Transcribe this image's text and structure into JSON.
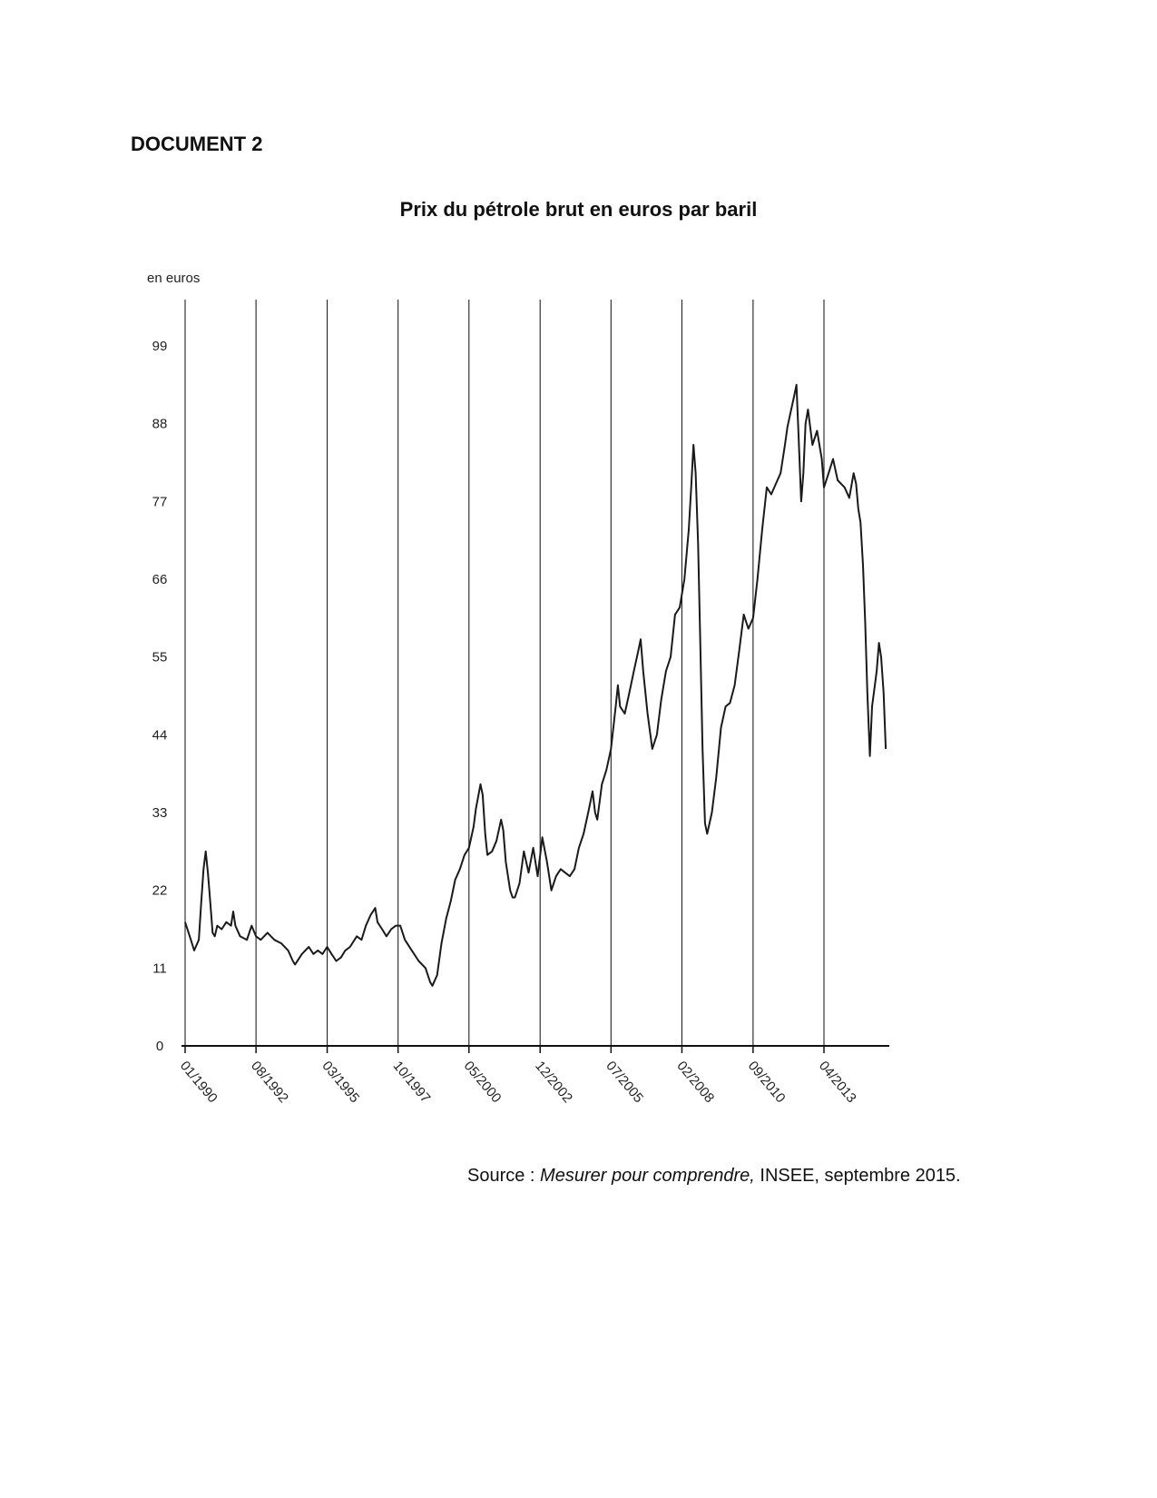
{
  "document": {
    "heading": "DOCUMENT 2",
    "source_prefix": "Source : ",
    "source_title": "Mesurer pour comprendre,",
    "source_suffix": " INSEE, septembre 2015."
  },
  "chart_data": {
    "type": "line",
    "title": "Prix du pétrole brut en euros par baril",
    "ylabel": "en euros",
    "xlabel": "",
    "ylim": [
      0,
      110
    ],
    "xlim": [
      1990.0,
      2015.0
    ],
    "yticks": [
      0,
      11,
      22,
      33,
      44,
      55,
      66,
      77,
      88,
      99
    ],
    "ytick_labels": [
      "0",
      "11",
      "22",
      "33",
      "44",
      "55",
      "66",
      "77",
      "88",
      "99"
    ],
    "xticks": [
      {
        "label": "01/1990",
        "x": 1990.0
      },
      {
        "label": "08/1992",
        "x": 1992.58
      },
      {
        "label": "03/1995",
        "x": 1995.17
      },
      {
        "label": "10/1997",
        "x": 1997.75
      },
      {
        "label": "05/2000",
        "x": 2000.33
      },
      {
        "label": "12/2002",
        "x": 2002.92
      },
      {
        "label": "07/2005",
        "x": 2005.5
      },
      {
        "label": "02/2008",
        "x": 2008.08
      },
      {
        "label": "09/2010",
        "x": 2010.67
      },
      {
        "label": "04/2013",
        "x": 2013.25
      }
    ],
    "grid": "vertical lines at x ticks",
    "series": [
      {
        "color": "#1a1a1a",
        "points": [
          [
            1990.0,
            17.5
          ],
          [
            1990.17,
            15.5
          ],
          [
            1990.33,
            13.5
          ],
          [
            1990.5,
            15.0
          ],
          [
            1990.58,
            20.0
          ],
          [
            1990.67,
            25.0
          ],
          [
            1990.75,
            27.5
          ],
          [
            1990.83,
            24.5
          ],
          [
            1990.92,
            20.0
          ],
          [
            1991.0,
            16.0
          ],
          [
            1991.08,
            15.5
          ],
          [
            1991.17,
            17.0
          ],
          [
            1991.33,
            16.5
          ],
          [
            1991.5,
            17.5
          ],
          [
            1991.67,
            17.0
          ],
          [
            1991.75,
            19.0
          ],
          [
            1991.83,
            17.0
          ],
          [
            1992.0,
            15.5
          ],
          [
            1992.25,
            15.0
          ],
          [
            1992.42,
            17.0
          ],
          [
            1992.58,
            15.5
          ],
          [
            1992.75,
            15.0
          ],
          [
            1993.0,
            16.0
          ],
          [
            1993.25,
            15.0
          ],
          [
            1993.5,
            14.5
          ],
          [
            1993.75,
            13.5
          ],
          [
            1993.92,
            12.0
          ],
          [
            1994.0,
            11.5
          ],
          [
            1994.25,
            13.0
          ],
          [
            1994.5,
            14.0
          ],
          [
            1994.67,
            13.0
          ],
          [
            1994.83,
            13.5
          ],
          [
            1995.0,
            13.0
          ],
          [
            1995.17,
            14.0
          ],
          [
            1995.33,
            13.0
          ],
          [
            1995.5,
            12.0
          ],
          [
            1995.67,
            12.5
          ],
          [
            1995.83,
            13.5
          ],
          [
            1996.0,
            14.0
          ],
          [
            1996.25,
            15.5
          ],
          [
            1996.42,
            15.0
          ],
          [
            1996.58,
            17.0
          ],
          [
            1996.75,
            18.5
          ],
          [
            1996.92,
            19.5
          ],
          [
            1997.0,
            17.5
          ],
          [
            1997.17,
            16.5
          ],
          [
            1997.33,
            15.5
          ],
          [
            1997.5,
            16.5
          ],
          [
            1997.67,
            17.0
          ],
          [
            1997.83,
            17.0
          ],
          [
            1998.0,
            15.0
          ],
          [
            1998.25,
            13.5
          ],
          [
            1998.5,
            12.0
          ],
          [
            1998.75,
            11.0
          ],
          [
            1998.92,
            9.0
          ],
          [
            1999.0,
            8.5
          ],
          [
            1999.17,
            10.0
          ],
          [
            1999.33,
            14.5
          ],
          [
            1999.5,
            18.0
          ],
          [
            1999.67,
            20.5
          ],
          [
            1999.83,
            23.5
          ],
          [
            2000.0,
            25.0
          ],
          [
            2000.17,
            27.0
          ],
          [
            2000.33,
            28.0
          ],
          [
            2000.5,
            31.0
          ],
          [
            2000.58,
            33.5
          ],
          [
            2000.75,
            37.0
          ],
          [
            2000.83,
            35.5
          ],
          [
            2000.92,
            30.0
          ],
          [
            2001.0,
            27.0
          ],
          [
            2001.17,
            27.5
          ],
          [
            2001.33,
            29.0
          ],
          [
            2001.5,
            32.0
          ],
          [
            2001.58,
            30.5
          ],
          [
            2001.67,
            26.0
          ],
          [
            2001.83,
            22.0
          ],
          [
            2001.92,
            21.0
          ],
          [
            2002.0,
            21.0
          ],
          [
            2002.17,
            23.0
          ],
          [
            2002.33,
            27.5
          ],
          [
            2002.5,
            24.5
          ],
          [
            2002.67,
            28.0
          ],
          [
            2002.83,
            24.0
          ],
          [
            2003.0,
            29.5
          ],
          [
            2003.17,
            26.0
          ],
          [
            2003.33,
            22.0
          ],
          [
            2003.5,
            24.0
          ],
          [
            2003.67,
            25.0
          ],
          [
            2003.83,
            24.5
          ],
          [
            2004.0,
            24.0
          ],
          [
            2004.17,
            25.0
          ],
          [
            2004.33,
            28.0
          ],
          [
            2004.5,
            30.0
          ],
          [
            2004.67,
            33.0
          ],
          [
            2004.83,
            36.0
          ],
          [
            2004.92,
            33.0
          ],
          [
            2005.0,
            32.0
          ],
          [
            2005.17,
            37.0
          ],
          [
            2005.33,
            39.0
          ],
          [
            2005.5,
            42.0
          ],
          [
            2005.67,
            48.0
          ],
          [
            2005.75,
            51.0
          ],
          [
            2005.83,
            48.0
          ],
          [
            2006.0,
            47.0
          ],
          [
            2006.17,
            50.0
          ],
          [
            2006.33,
            53.0
          ],
          [
            2006.5,
            56.0
          ],
          [
            2006.58,
            57.5
          ],
          [
            2006.67,
            53.0
          ],
          [
            2006.83,
            47.0
          ],
          [
            2007.0,
            42.0
          ],
          [
            2007.17,
            44.0
          ],
          [
            2007.33,
            49.0
          ],
          [
            2007.5,
            53.0
          ],
          [
            2007.67,
            55.0
          ],
          [
            2007.83,
            61.0
          ],
          [
            2008.0,
            62.0
          ],
          [
            2008.17,
            66.0
          ],
          [
            2008.33,
            73.0
          ],
          [
            2008.42,
            79.0
          ],
          [
            2008.5,
            85.0
          ],
          [
            2008.58,
            81.0
          ],
          [
            2008.67,
            71.0
          ],
          [
            2008.75,
            57.0
          ],
          [
            2008.83,
            42.0
          ],
          [
            2008.92,
            31.5
          ],
          [
            2009.0,
            30.0
          ],
          [
            2009.17,
            33.0
          ],
          [
            2009.33,
            38.0
          ],
          [
            2009.5,
            45.0
          ],
          [
            2009.67,
            48.0
          ],
          [
            2009.83,
            48.5
          ],
          [
            2010.0,
            51.0
          ],
          [
            2010.17,
            56.0
          ],
          [
            2010.33,
            61.0
          ],
          [
            2010.5,
            59.0
          ],
          [
            2010.67,
            60.5
          ],
          [
            2010.83,
            66.0
          ],
          [
            2011.0,
            73.0
          ],
          [
            2011.17,
            79.0
          ],
          [
            2011.33,
            78.0
          ],
          [
            2011.5,
            79.5
          ],
          [
            2011.67,
            81.0
          ],
          [
            2011.83,
            85.0
          ],
          [
            2011.92,
            87.5
          ],
          [
            2012.0,
            89.0
          ],
          [
            2012.17,
            92.0
          ],
          [
            2012.25,
            93.5
          ],
          [
            2012.33,
            86.0
          ],
          [
            2012.42,
            77.0
          ],
          [
            2012.5,
            81.0
          ],
          [
            2012.58,
            88.0
          ],
          [
            2012.67,
            90.0
          ],
          [
            2012.83,
            85.0
          ],
          [
            2013.0,
            87.0
          ],
          [
            2013.17,
            83.0
          ],
          [
            2013.25,
            79.0
          ],
          [
            2013.42,
            81.0
          ],
          [
            2013.58,
            83.0
          ],
          [
            2013.75,
            80.0
          ],
          [
            2014.0,
            79.0
          ],
          [
            2014.17,
            77.5
          ],
          [
            2014.33,
            81.0
          ],
          [
            2014.42,
            79.5
          ],
          [
            2014.5,
            76.0
          ],
          [
            2014.58,
            74.0
          ],
          [
            2014.67,
            68.0
          ],
          [
            2014.75,
            60.0
          ],
          [
            2014.83,
            50.0
          ],
          [
            2014.92,
            41.0
          ],
          [
            2015.0,
            48.0
          ],
          [
            2015.17,
            53.0
          ],
          [
            2015.25,
            57.0
          ],
          [
            2015.33,
            55.0
          ],
          [
            2015.42,
            50.0
          ],
          [
            2015.5,
            42.0
          ]
        ]
      }
    ]
  }
}
